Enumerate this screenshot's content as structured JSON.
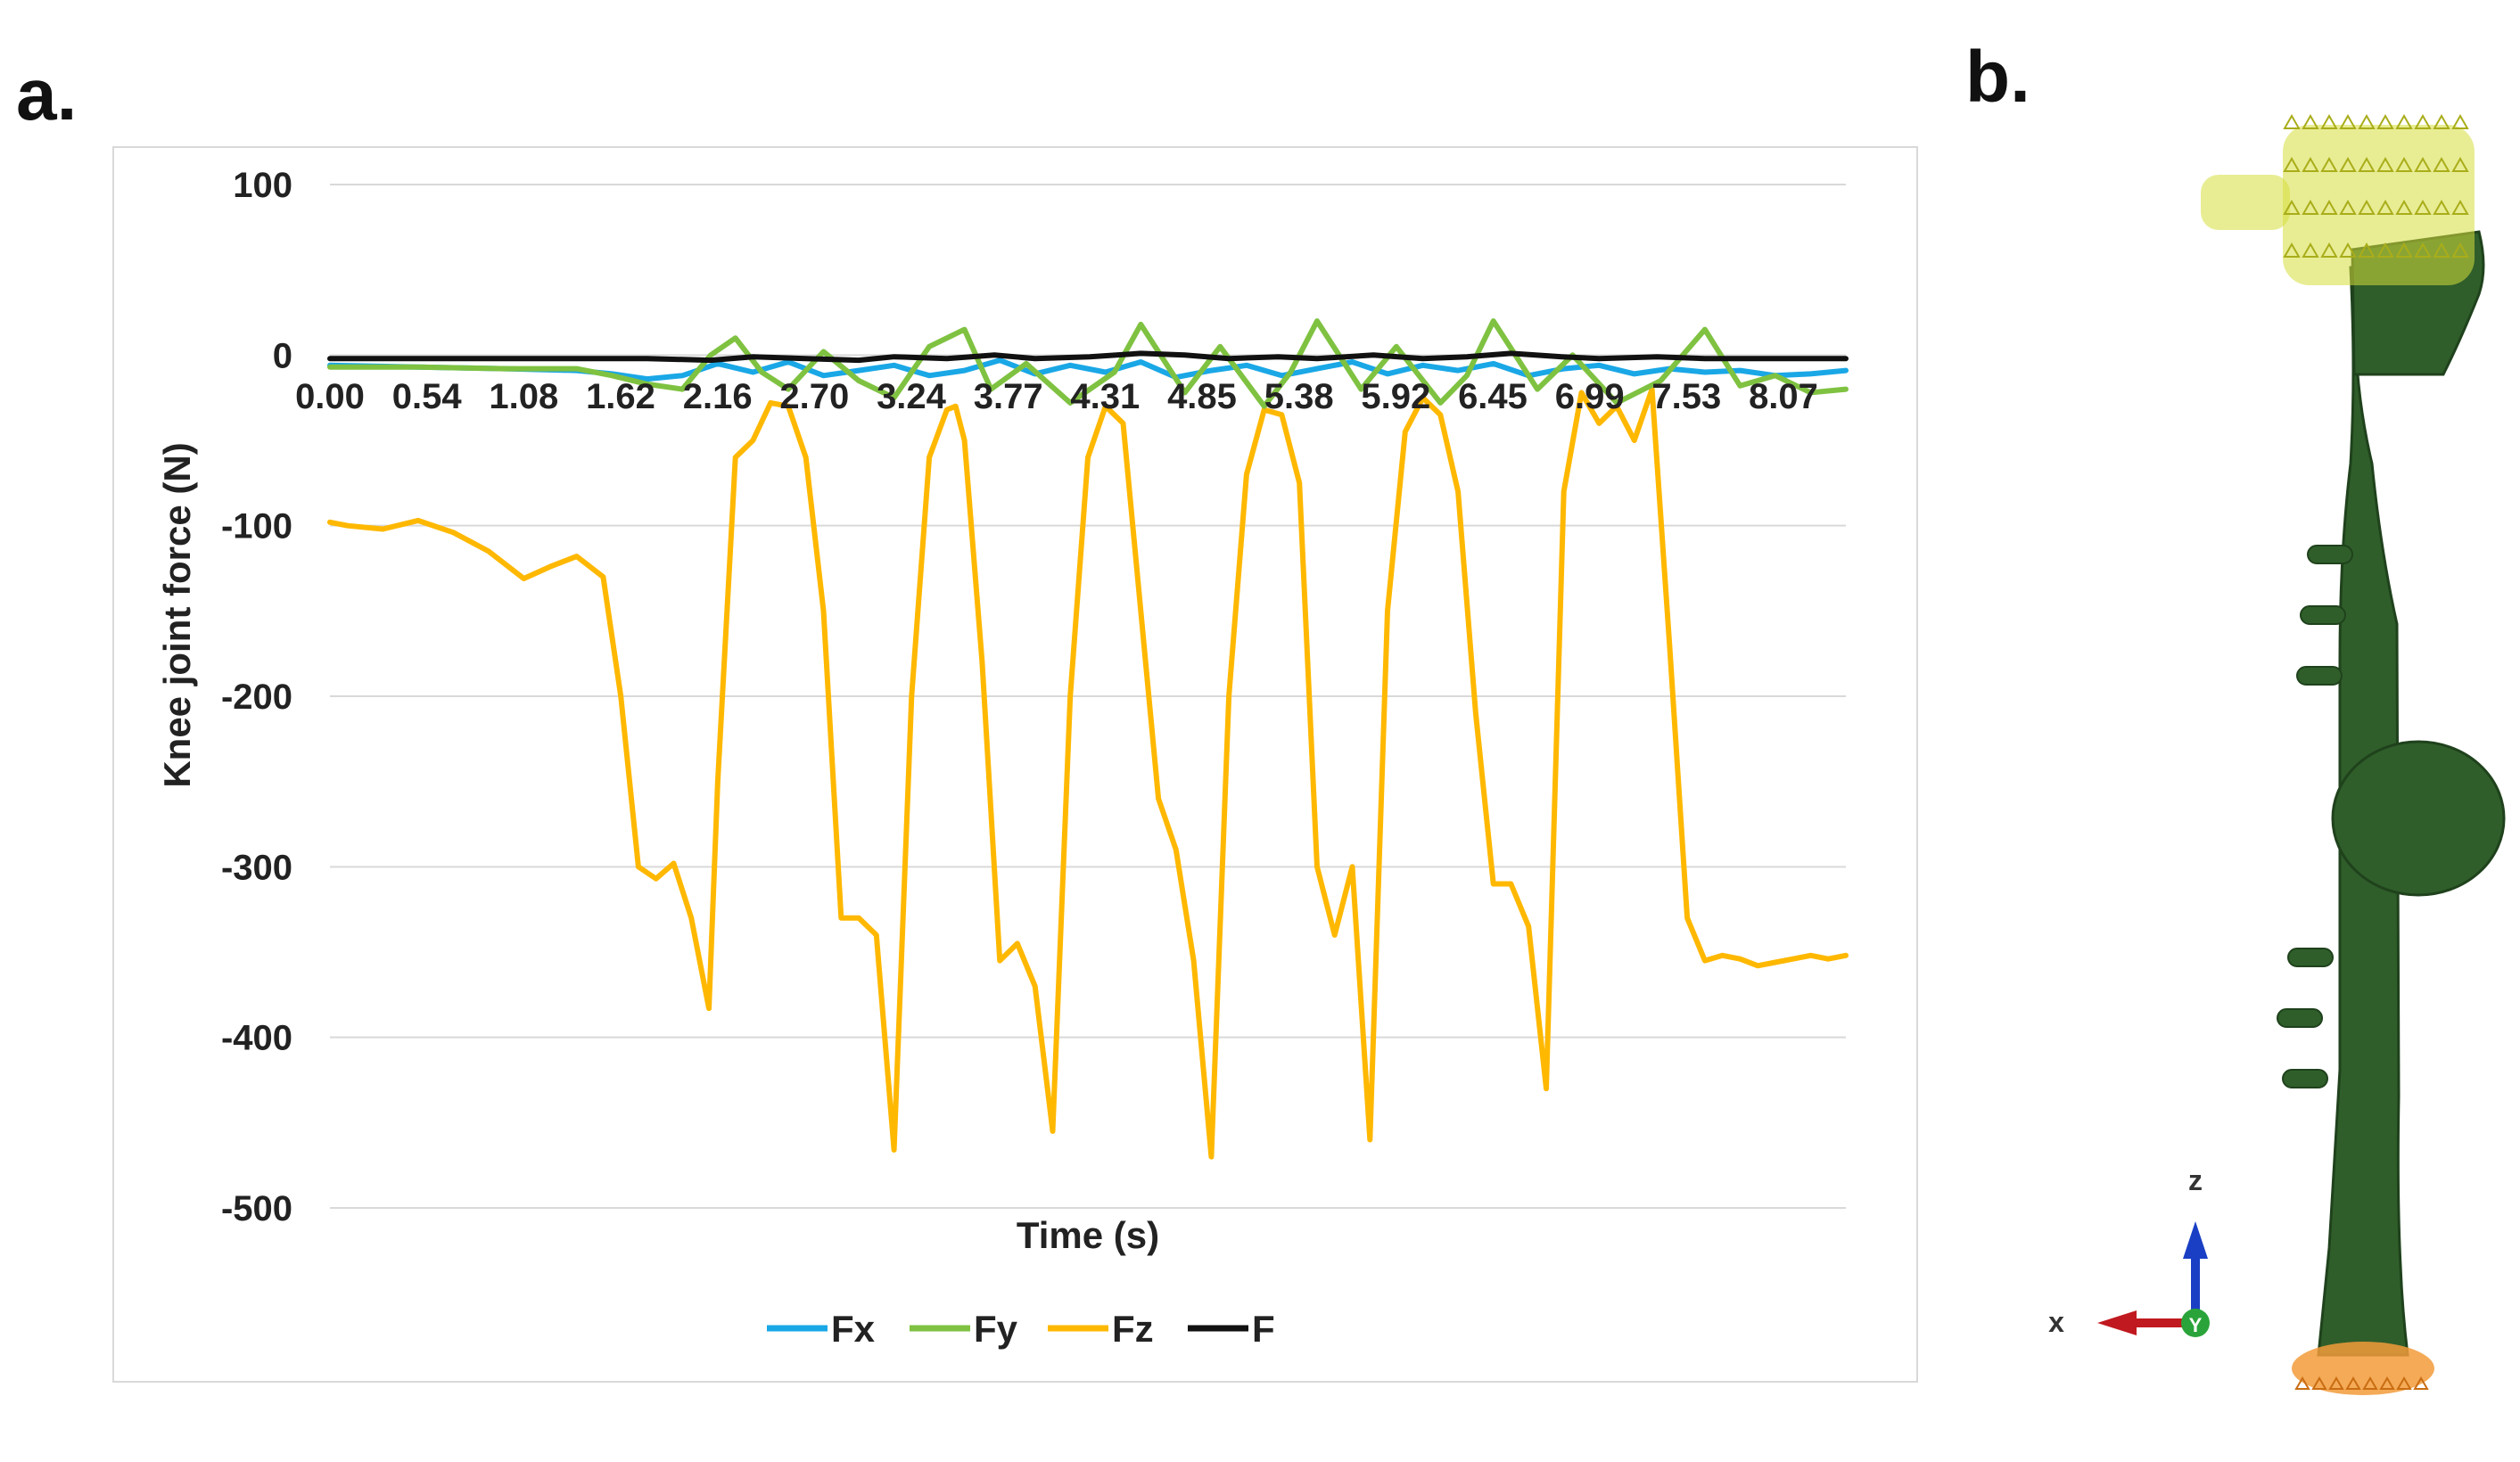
{
  "panel_a_label": "a.",
  "panel_b_label": "b.",
  "chart_data": {
    "type": "line",
    "title": "",
    "xlabel": "Time (s)",
    "ylabel": "Knee joint force (N)",
    "ylim": [
      -500,
      100
    ],
    "yticks": [
      100,
      0,
      -100,
      -200,
      -300,
      -400,
      -500
    ],
    "xlim": [
      0,
      8.6
    ],
    "xticks": [
      "0.00",
      "0.54",
      "1.08",
      "1.62",
      "2.16",
      "2.70",
      "3.24",
      "3.77",
      "4.31",
      "4.85",
      "5.38",
      "5.92",
      "6.45",
      "6.99",
      "7.53",
      "8.07"
    ],
    "grid": true,
    "legend": "bottom",
    "series": [
      {
        "name": "Fx",
        "color": "#1aa7e6",
        "x": [
          0,
          0.5,
          1.0,
          1.4,
          1.6,
          1.8,
          2.0,
          2.2,
          2.4,
          2.6,
          2.8,
          3.0,
          3.2,
          3.4,
          3.6,
          3.8,
          4.0,
          4.2,
          4.4,
          4.6,
          4.8,
          5.0,
          5.2,
          5.4,
          5.6,
          5.8,
          6.0,
          6.2,
          6.4,
          6.6,
          6.8,
          7.0,
          7.2,
          7.4,
          7.6,
          7.8,
          8.0,
          8.2,
          8.4,
          8.6
        ],
        "y": [
          -6,
          -7,
          -8,
          -9,
          -11,
          -14,
          -12,
          -5,
          -10,
          -4,
          -12,
          -9,
          -6,
          -12,
          -9,
          -3,
          -11,
          -6,
          -10,
          -4,
          -13,
          -9,
          -6,
          -12,
          -8,
          -4,
          -11,
          -6,
          -9,
          -5,
          -12,
          -8,
          -6,
          -11,
          -8,
          -10,
          -9,
          -12,
          -11,
          -9
        ]
      },
      {
        "name": "Fy",
        "color": "#7fc241",
        "x": [
          0,
          0.5,
          1.0,
          1.4,
          1.6,
          1.8,
          2.0,
          2.16,
          2.3,
          2.45,
          2.6,
          2.8,
          3.0,
          3.2,
          3.4,
          3.6,
          3.75,
          3.95,
          4.2,
          4.45,
          4.6,
          4.85,
          5.05,
          5.3,
          5.45,
          5.6,
          5.85,
          6.05,
          6.3,
          6.45,
          6.6,
          6.85,
          7.05,
          7.3,
          7.55,
          7.8,
          8.0,
          8.2,
          8.4,
          8.6
        ],
        "y": [
          -7,
          -7,
          -8,
          -8,
          -12,
          -17,
          -20,
          0,
          10,
          -10,
          -20,
          2,
          -15,
          -25,
          5,
          15,
          -20,
          -5,
          -28,
          -10,
          18,
          -22,
          5,
          -30,
          -10,
          20,
          -20,
          5,
          -28,
          -12,
          20,
          -20,
          0,
          -28,
          -15,
          15,
          -18,
          -12,
          -22,
          -20
        ]
      },
      {
        "name": "Fz",
        "color": "#ffb800",
        "x": [
          0,
          0.1,
          0.3,
          0.5,
          0.7,
          0.9,
          1.0,
          1.1,
          1.25,
          1.4,
          1.55,
          1.65,
          1.75,
          1.85,
          1.95,
          2.05,
          2.15,
          2.2,
          2.3,
          2.4,
          2.5,
          2.6,
          2.7,
          2.8,
          2.9,
          3.0,
          3.1,
          3.2,
          3.3,
          3.4,
          3.5,
          3.55,
          3.6,
          3.7,
          3.8,
          3.9,
          4.0,
          4.1,
          4.2,
          4.3,
          4.4,
          4.5,
          4.6,
          4.7,
          4.8,
          4.9,
          5.0,
          5.1,
          5.2,
          5.3,
          5.4,
          5.5,
          5.6,
          5.7,
          5.8,
          5.9,
          6.0,
          6.1,
          6.2,
          6.3,
          6.4,
          6.5,
          6.6,
          6.7,
          6.8,
          6.9,
          7.0,
          7.1,
          7.2,
          7.3,
          7.4,
          7.5,
          7.6,
          7.7,
          7.8,
          7.9,
          8.0,
          8.1,
          8.2,
          8.3,
          8.4,
          8.5,
          8.6
        ],
        "y": [
          -98,
          -100,
          -102,
          -97,
          -104,
          -115,
          -123,
          -131,
          -124,
          -118,
          -130,
          -200,
          -300,
          -307,
          -298,
          -330,
          -383,
          -250,
          -60,
          -50,
          -28,
          -30,
          -60,
          -150,
          -330,
          -330,
          -340,
          -466,
          -200,
          -60,
          -32,
          -30,
          -50,
          -180,
          -355,
          -345,
          -370,
          -455,
          -200,
          -60,
          -30,
          -40,
          -150,
          -260,
          -290,
          -355,
          -470,
          -200,
          -70,
          -32,
          -35,
          -75,
          -300,
          -340,
          -300,
          -460,
          -150,
          -45,
          -25,
          -35,
          -80,
          -210,
          -310,
          -310,
          -335,
          -430,
          -80,
          -22,
          -40,
          -30,
          -50,
          -20,
          -170,
          -330,
          -355,
          -352,
          -354,
          -358,
          -356,
          -354,
          -352,
          -354,
          -352
        ]
      },
      {
        "name": "F",
        "color": "#111111",
        "x": [
          0,
          0.5,
          1.0,
          1.5,
          1.8,
          2.16,
          2.4,
          2.7,
          3.0,
          3.2,
          3.5,
          3.77,
          4.0,
          4.31,
          4.6,
          4.85,
          5.1,
          5.38,
          5.6,
          5.92,
          6.2,
          6.45,
          6.7,
          6.99,
          7.2,
          7.53,
          7.8,
          8.07,
          8.3,
          8.6
        ],
        "y": [
          -2,
          -2,
          -2,
          -2,
          -2,
          -3,
          -1,
          -2,
          -3,
          -1,
          -2,
          0,
          -2,
          -1,
          1,
          0,
          -2,
          -1,
          -2,
          0,
          -2,
          -1,
          1,
          -1,
          -2,
          -1,
          -2,
          -2,
          -2,
          -2
        ]
      }
    ]
  },
  "axes_triad": {
    "labels": [
      "z",
      "x",
      "Y"
    ],
    "colors": {
      "z": "#1a3fc4",
      "x": "#c0191f",
      "y": "#2aa43a"
    }
  },
  "model_colors": {
    "bone": "#2f5e2a",
    "top_load": "#d6de3c",
    "bottom_constraint": "#f29b3a"
  }
}
